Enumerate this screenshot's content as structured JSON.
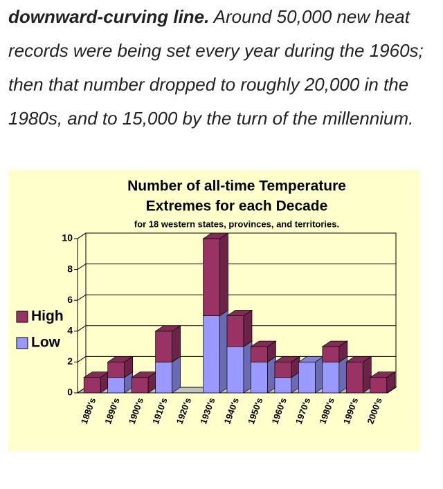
{
  "paragraph": {
    "lead": "downward-curving line.",
    "text": " Around 50,000 new heat records were being set every year during the 1960s; then that number dropped to roughly 20,000 in the 1980s, and to 15,000 by the turn of the millennium."
  },
  "chart_data": {
    "type": "bar",
    "stacked": true,
    "title": [
      "Number of all-time Temperature",
      "Extremes for each Decade"
    ],
    "subtitle": "for 18 western states, provinces, and territories.",
    "categories": [
      "1880's",
      "1890's",
      "1900's",
      "1910's",
      "1920's",
      "1930's",
      "1940's",
      "1950's",
      "1960's",
      "1970's",
      "1980's",
      "1990's",
      "2000's"
    ],
    "series": [
      {
        "name": "Low",
        "color": "#9999ff",
        "values": [
          0,
          1,
          0,
          2,
          0,
          5,
          3,
          2,
          1,
          2,
          2,
          0,
          0
        ]
      },
      {
        "name": "High",
        "color": "#993366",
        "values": [
          1,
          1,
          1,
          2,
          0,
          5,
          2,
          1,
          1,
          0,
          1,
          2,
          1
        ]
      }
    ],
    "ylim": [
      0,
      10
    ],
    "yticks": [
      0,
      2,
      4,
      6,
      8,
      10
    ],
    "grid": true,
    "legend": "left"
  }
}
